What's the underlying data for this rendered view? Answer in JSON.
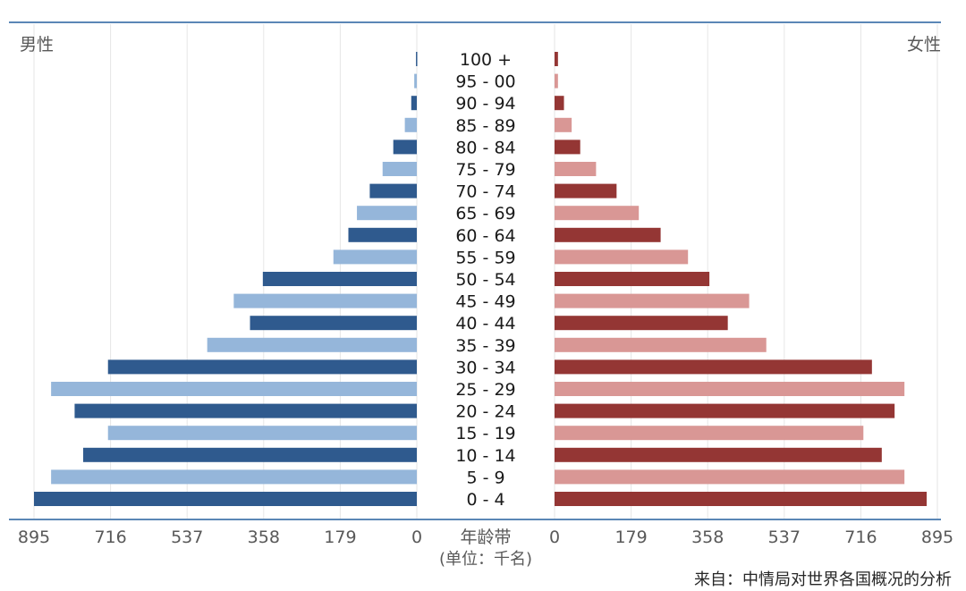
{
  "colors": {
    "male_dark": "#2f5a8e",
    "male_light": "#95b6da",
    "female_dark": "#943634",
    "female_light": "#d99795",
    "axis_line": "#5b87b6",
    "grid": "#e6e6e6"
  },
  "chart_data": {
    "type": "bar",
    "orientation": "horizontal-population-pyramid",
    "left_label": "男性",
    "right_label": "女性",
    "center_label": "年龄带",
    "unit_label": "(单位：千名)",
    "source": "来自：中情局对世界各国概况的分析",
    "tick_labels": [
      "895",
      "716",
      "537",
      "358",
      "179",
      "0"
    ],
    "tick_values": [
      895,
      716,
      537,
      358,
      179,
      0
    ],
    "xlim": [
      0,
      895
    ],
    "grid": true,
    "categories": [
      "100 +",
      "95 - 00",
      "90 - 94",
      "85 - 89",
      "80 - 84",
      "75 - 79",
      "70 - 74",
      "65 - 69",
      "60 - 64",
      "55 - 59",
      "50 - 54",
      "45 - 49",
      "40 - 44",
      "35 - 39",
      "30 - 34",
      "25 - 29",
      "20 - 24",
      "15 - 19",
      "10 - 14",
      "5 - 9",
      "0 - 4"
    ],
    "series": [
      {
        "name": "男性",
        "values": [
          2,
          6,
          13,
          28,
          55,
          80,
          110,
          140,
          160,
          195,
          360,
          428,
          390,
          490,
          722,
          855,
          800,
          722,
          780,
          855,
          895
        ]
      },
      {
        "name": "女性",
        "values": [
          8,
          8,
          22,
          40,
          60,
          97,
          145,
          197,
          248,
          312,
          362,
          455,
          405,
          495,
          742,
          818,
          795,
          722,
          765,
          818,
          870
        ]
      }
    ]
  }
}
